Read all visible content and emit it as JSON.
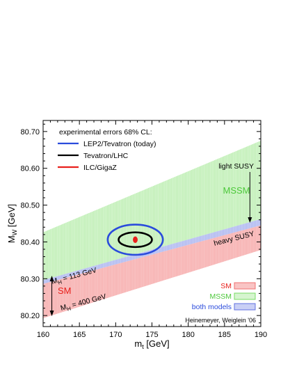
{
  "chart_data": {
    "type": "area",
    "xlabel_main": "m",
    "xlabel_sub": "t",
    "xlabel_unit": " [GeV]",
    "ylabel_main": "M",
    "ylabel_sub": "W",
    "ylabel_unit": " [GeV]",
    "xlim": [
      160,
      190
    ],
    "ylim": [
      80.17,
      80.73
    ],
    "x_ticks": [
      160,
      165,
      170,
      175,
      180,
      185,
      190
    ],
    "y_ticks": [
      80.2,
      80.3,
      80.4,
      80.5,
      80.6,
      80.7
    ],
    "y_tick_labels": [
      "80.20",
      "80.30",
      "80.40",
      "80.50",
      "80.60",
      "80.70"
    ],
    "bands": [
      {
        "name": "SM",
        "color": "#f07070",
        "fill": "#f9c4c4",
        "upper": [
          [
            160,
            80.286
          ],
          [
            190,
            80.445
          ]
        ],
        "lower": [
          [
            160,
            80.193
          ],
          [
            190,
            80.378
          ]
        ]
      },
      {
        "name": "MSSM",
        "color": "#78dc64",
        "fill": "#d6f5cf",
        "upper": [
          [
            160,
            80.426
          ],
          [
            190,
            80.675
          ]
        ],
        "lower": [
          [
            160,
            80.296
          ],
          [
            190,
            80.462
          ]
        ]
      },
      {
        "name": "both models",
        "color": "#6070e0",
        "fill": "#c9cff5",
        "upper": [
          [
            160,
            80.296
          ],
          [
            190,
            80.462
          ]
        ],
        "lower": [
          [
            160,
            80.286
          ],
          [
            190,
            80.445
          ]
        ]
      }
    ],
    "ellipses": [
      {
        "name": "LEP2/Tevatron (today)",
        "color": "#2a4bdc",
        "center": [
          172.7,
          80.406
        ],
        "rx": 3.8,
        "ry": 0.041
      },
      {
        "name": "Tevatron/LHC",
        "color": "#000000",
        "center": [
          172.7,
          80.406
        ],
        "rx": 2.3,
        "ry": 0.02
      },
      {
        "name": "ILC/GigaZ",
        "color": "#e8201c",
        "center": [
          172.7,
          80.406
        ],
        "rx": 0.28,
        "ry": 0.008
      }
    ],
    "legend": {
      "header": "experimental errors 68% CL:",
      "entries": [
        "LEP2/Tevatron (today)",
        "Tevatron/LHC",
        "ILC/GigaZ"
      ]
    },
    "band_legend": [
      "SM",
      "MSSM",
      "both models"
    ],
    "annotations": {
      "light_susy": "light SUSY",
      "heavy_susy": "heavy SUSY",
      "mssm_label": "MSSM",
      "sm_label": "SM",
      "mh_upper_pre": "M",
      "mh_upper_sub": "H",
      "mh_upper_post": " = 113 GeV",
      "mh_lower_pre": "M",
      "mh_lower_sub": "H",
      "mh_lower_post": " = 400 GeV",
      "credit": "Heinemeyer, Weiglein '06"
    },
    "colors": {
      "sm_text": "#e8201c",
      "mssm_text": "#4cc83a",
      "both_text": "#2a4bdc"
    }
  }
}
